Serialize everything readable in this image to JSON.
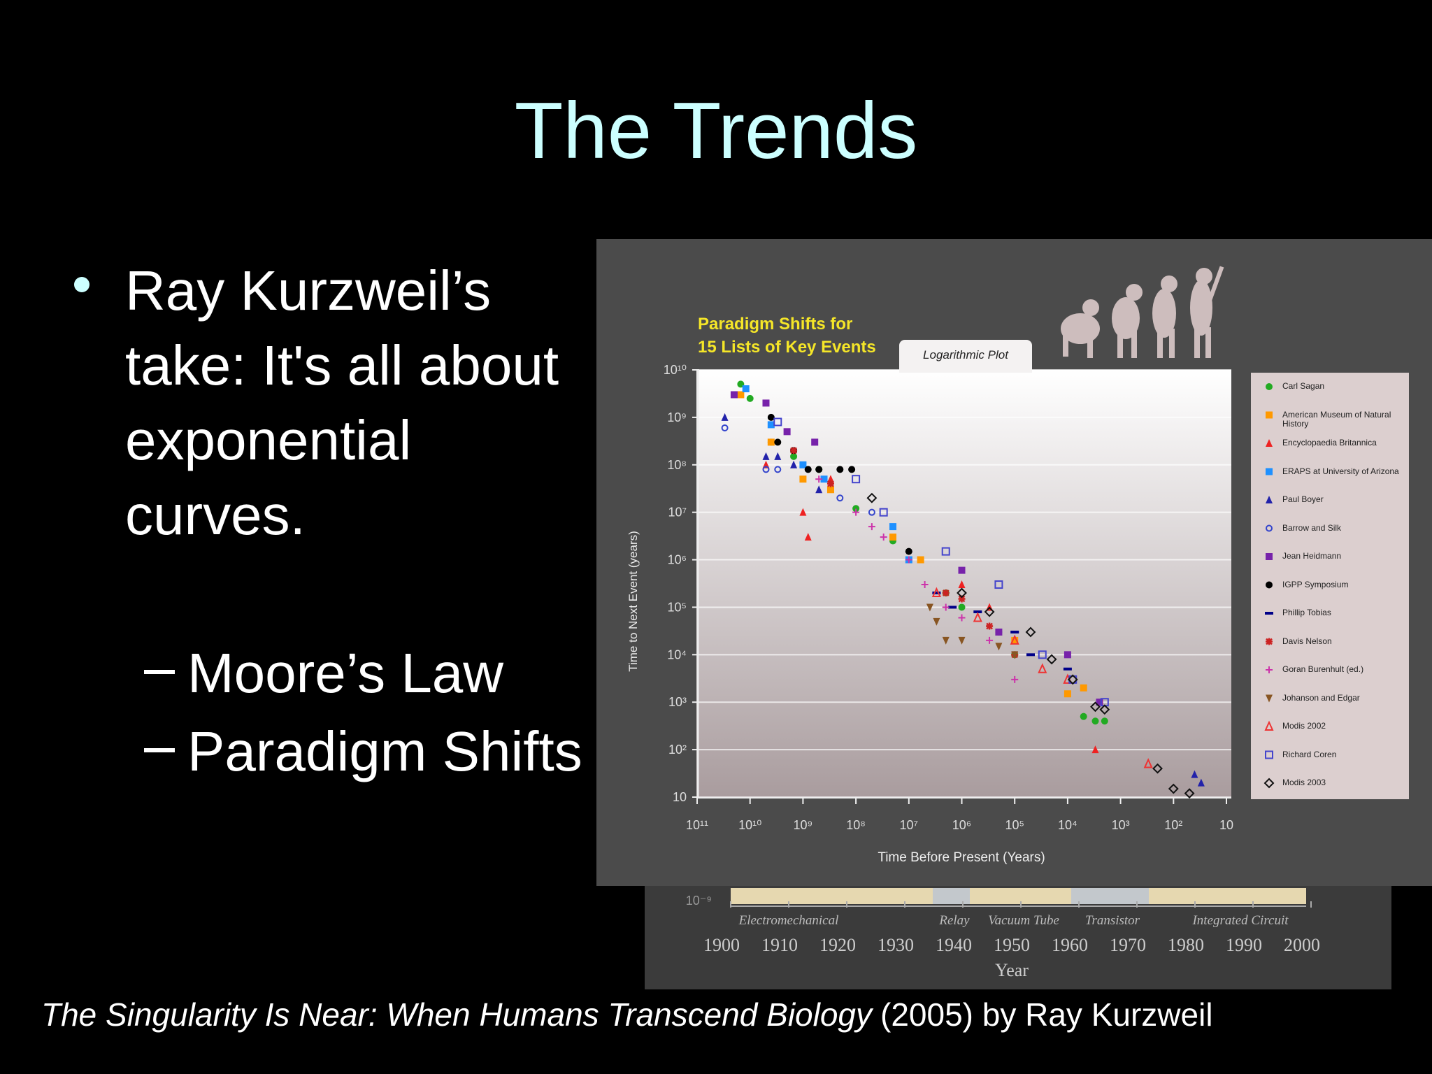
{
  "slide": {
    "title": "The Trends",
    "bullet": "Ray Kurzweil’s take: It's all about exponential curves.",
    "subbullets": [
      "Moore’s Law",
      "Paradigm Shifts"
    ],
    "citation": {
      "book": "The Singularity Is Near: When Humans Transcend Biology",
      "rest": "(2005) by Ray Kurzweil"
    }
  },
  "chart_data": {
    "type": "scatter",
    "title": "Paradigm Shifts for",
    "subtitle": "15 Lists of Key Events",
    "annotation": "Logarithmic Plot",
    "x_label": "Time Before Present (Years)",
    "y_label": "Time to Next Event (years)",
    "x_log": true,
    "y_log": true,
    "grid": true,
    "xlim": [
      100000000000,
      10
    ],
    "ylim": [
      10,
      10000000000
    ],
    "xticks": [
      {
        "value": 100000000000,
        "label": "10¹¹"
      },
      {
        "value": 10000000000,
        "label": "10¹⁰"
      },
      {
        "value": 1000000000,
        "label": "10⁹"
      },
      {
        "value": 100000000,
        "label": "10⁸"
      },
      {
        "value": 10000000,
        "label": "10⁷"
      },
      {
        "value": 1000000,
        "label": "10⁶"
      },
      {
        "value": 100000,
        "label": "10⁵"
      },
      {
        "value": 10000,
        "label": "10⁴"
      },
      {
        "value": 1000,
        "label": "10³"
      },
      {
        "value": 100,
        "label": "10²"
      },
      10
    ],
    "yticks": [
      {
        "value": 10000000000,
        "label": "10¹⁰"
      },
      {
        "value": 1000000000,
        "label": "10⁹"
      },
      {
        "value": 100000000,
        "label": "10⁸"
      },
      {
        "value": 10000000,
        "label": "10⁷"
      },
      {
        "value": 1000000,
        "label": "10⁶"
      },
      {
        "value": 100000,
        "label": "10⁵"
      },
      {
        "value": 10000,
        "label": "10⁴"
      },
      {
        "value": 1000,
        "label": "10³"
      },
      {
        "value": 100,
        "label": "10²"
      },
      10
    ],
    "series": [
      {
        "name": "Carl Sagan",
        "color": "#22aa22",
        "marker": "circle",
        "x": [
          15000000000,
          10000000000,
          4000000000,
          1500000000,
          500000000,
          100000000,
          20000000,
          2000000,
          1000000,
          200000,
          100000,
          5000,
          3000,
          2000
        ],
        "values": [
          5000000000,
          2500000000,
          300000000,
          150000000,
          80000000,
          12000000,
          2500000,
          200000,
          100000,
          30000,
          10000,
          500,
          400,
          400
        ]
      },
      {
        "name": "American Museum of Natural History",
        "color": "#ff9900",
        "marker": "square",
        "x": [
          15000000000,
          4000000000,
          1000000000,
          300000000,
          20000000,
          6000000,
          100000,
          10000,
          5000
        ],
        "values": [
          3000000000,
          300000000,
          50000000,
          30000000,
          3000000,
          1000000,
          20000,
          1500,
          2000
        ]
      },
      {
        "name": "Encyclopaedia Britannica",
        "color": "#ee2222",
        "marker": "triangle",
        "x": [
          5000000000,
          1000000000,
          800000000,
          300000000,
          1000000,
          300000,
          3000
        ],
        "values": [
          100000000,
          10000000,
          3000000,
          50000000,
          300000,
          100000,
          100
        ]
      },
      {
        "name": "ERAPS at University of Arizona",
        "color": "#1e90ff",
        "marker": "square",
        "x": [
          12000000000,
          4000000000,
          1000000000,
          400000000,
          20000000,
          10000000
        ],
        "values": [
          4000000000,
          700000000,
          100000000,
          50000000,
          5000000,
          1000000
        ]
      },
      {
        "name": "Paul Boyer",
        "color": "#2222aa",
        "marker": "triangle",
        "x": [
          30000000000,
          5000000000,
          3000000000,
          1500000000,
          500000000,
          40,
          30
        ],
        "values": [
          1000000000,
          150000000,
          150000000,
          100000000,
          30000000,
          30,
          20
        ]
      },
      {
        "name": "Barrow and Silk",
        "color": "#3344cc",
        "marker": "open-circle",
        "x": [
          30000000000,
          5000000000,
          3000000000,
          200000000,
          50000000
        ],
        "values": [
          600000000,
          80000000,
          80000000,
          20000000,
          10000000
        ]
      },
      {
        "name": "Jean Heidmann",
        "color": "#7722aa",
        "marker": "square",
        "x": [
          20000000000,
          5000000000,
          2000000000,
          600000000,
          1000000,
          200000,
          10000,
          2500
        ],
        "values": [
          3000000000,
          2000000000,
          500000000,
          300000000,
          600000,
          30000,
          10000,
          1000
        ]
      },
      {
        "name": "IGPP Symposium",
        "color": "#000000",
        "marker": "circle",
        "x": [
          4000000000,
          3000000000,
          1500000000,
          800000000,
          500000000,
          200000000,
          120000000,
          10000000
        ],
        "values": [
          1000000000,
          300000000,
          200000000,
          80000000,
          80000000,
          80000000,
          80000000,
          1500000
        ]
      },
      {
        "name": "Phillip Tobias",
        "color": "#000088",
        "marker": "dash",
        "x": [
          3000000,
          1500000,
          500000,
          100000,
          50000,
          10000
        ],
        "values": [
          200000,
          100000,
          80000,
          30000,
          10000,
          5000
        ]
      },
      {
        "name": "Davis Nelson",
        "color": "#cc2222",
        "marker": "star",
        "x": [
          1500000000,
          300000000,
          2000000,
          1000000,
          300000,
          100000
        ],
        "values": [
          200000000,
          40000000,
          200000,
          150000,
          40000,
          10000
        ]
      },
      {
        "name": "Goran Burenhult (ed.)",
        "color": "#cc33aa",
        "marker": "plus",
        "x": [
          500000000,
          100000000,
          50000000,
          30000000,
          10000000,
          5000000,
          2000000,
          1000000,
          300000,
          100000
        ],
        "values": [
          50000000,
          10000000,
          5000000,
          3000000,
          1000000,
          300000,
          100000,
          60000,
          20000,
          3000
        ]
      },
      {
        "name": "Johanson and Edgar",
        "color": "#885522",
        "marker": "down-triangle",
        "x": [
          4000000,
          3000000,
          2000000,
          1000000,
          200000,
          100000
        ],
        "values": [
          100000,
          50000,
          20000,
          20000,
          15000,
          10000
        ]
      },
      {
        "name": "Modis 2002",
        "color": "#ee3333",
        "marker": "open-triangle",
        "x": [
          3000000,
          500000,
          100000,
          30000,
          10000,
          300
        ],
        "values": [
          200000,
          60000,
          20000,
          5000,
          3000,
          50
        ]
      },
      {
        "name": "Richard Coren",
        "color": "#4444cc",
        "marker": "open-square",
        "x": [
          3000000000,
          100000000,
          30000000,
          2000000,
          200000,
          30000,
          8000,
          2000
        ],
        "values": [
          800000000,
          50000000,
          10000000,
          1500000,
          300000,
          10000,
          3000,
          1000
        ]
      },
      {
        "name": "Modis 2003",
        "color": "#111111",
        "marker": "open-diamond",
        "x": [
          50000000,
          1000000,
          300000,
          50000,
          20000,
          8000,
          3000,
          2000,
          200,
          100,
          50
        ],
        "values": [
          20000000,
          200000,
          80000,
          30000,
          8000,
          3000,
          800,
          700,
          40,
          15,
          12
        ]
      }
    ]
  },
  "inset_figure": {
    "y_tick": "10⁻⁹",
    "eras": [
      "Electromechanical",
      "Relay",
      "Vacuum Tube",
      "Transistor",
      "Integrated Circuit"
    ],
    "years": [
      1900,
      1910,
      1920,
      1930,
      1940,
      1950,
      1960,
      1970,
      1980,
      1990,
      2000
    ],
    "x_label": "Year"
  }
}
